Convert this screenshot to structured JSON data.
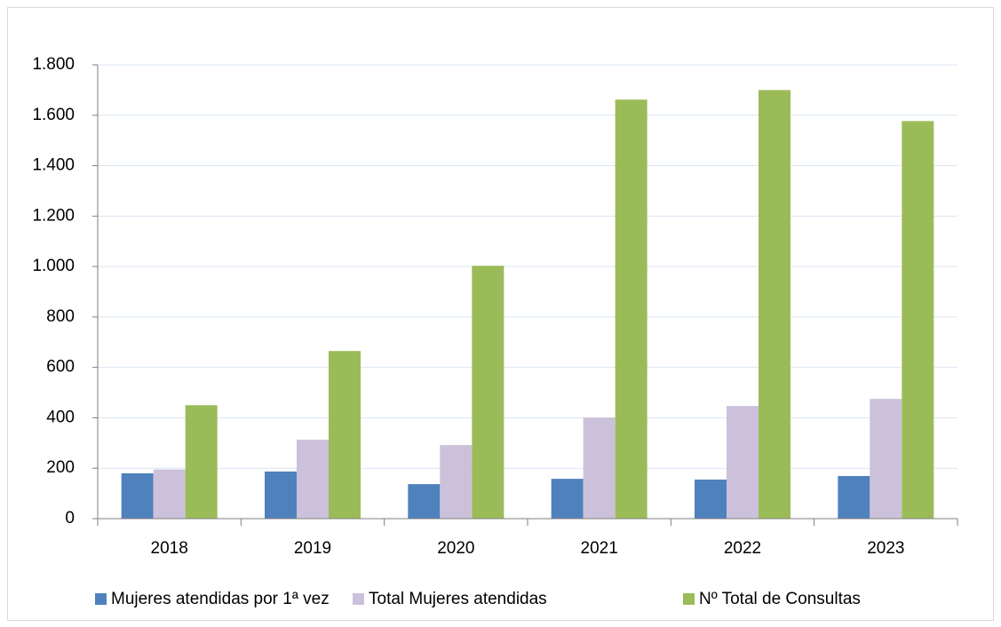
{
  "chart_data": {
    "type": "bar",
    "categories": [
      "2018",
      "2019",
      "2020",
      "2021",
      "2022",
      "2023"
    ],
    "series": [
      {
        "name": "Mujeres atendidas por 1ª vez",
        "color": "#4f81bd",
        "values": [
          180,
          187,
          137,
          158,
          155,
          169
        ]
      },
      {
        "name": "Total Mujeres atendidas",
        "color": "#ccc1da",
        "values": [
          195,
          313,
          292,
          401,
          447,
          475
        ]
      },
      {
        "name": "Nº Total de Consultas",
        "color": "#9bbb59",
        "values": [
          450,
          665,
          1003,
          1662,
          1700,
          1577
        ]
      }
    ],
    "ylim": [
      0,
      1800
    ],
    "yticks": [
      0,
      200,
      400,
      600,
      800,
      {
        "value": 1000,
        "label": "1.000"
      },
      {
        "value": 1200,
        "label": "1.200"
      },
      {
        "value": 1400,
        "label": "1.400"
      },
      {
        "value": 1600,
        "label": "1.600"
      },
      {
        "value": 1800,
        "label": "1.800"
      }
    ],
    "grid": true,
    "legend": "bottom"
  }
}
